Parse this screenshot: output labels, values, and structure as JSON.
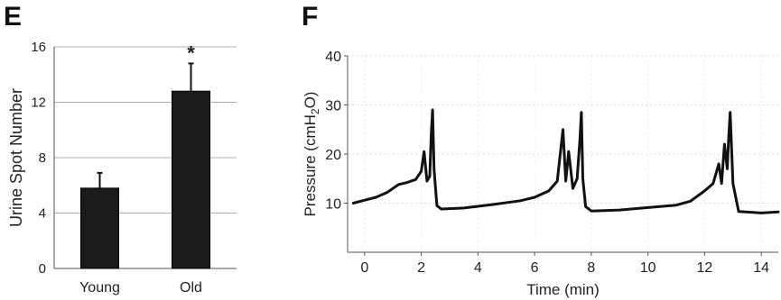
{
  "panels": {
    "left_letter": "E",
    "right_letter": "F"
  },
  "chart_data": [
    {
      "type": "bar",
      "panel": "E",
      "categories": [
        "Young",
        "Old"
      ],
      "values": [
        5.8,
        12.8
      ],
      "errors": [
        1.1,
        2.0
      ],
      "significance": [
        "",
        "*"
      ],
      "ylabel": "Urine Spot Number",
      "xlabel": "",
      "ylim": [
        0,
        16
      ],
      "yticks": [
        0,
        4,
        8,
        12,
        16
      ],
      "grid": true,
      "bar_color": "#1a1a1a"
    },
    {
      "type": "line",
      "panel": "F",
      "xlabel": "Time (min)",
      "ylabel_prefix": "Pressure (cmH",
      "ylabel_sub": "2",
      "ylabel_suffix": "O)",
      "xlim": [
        -0.6,
        14.6
      ],
      "ylim": [
        0,
        40
      ],
      "xticks": [
        0,
        2,
        4,
        6,
        8,
        10,
        12,
        14
      ],
      "yticks": [
        10,
        20,
        30,
        40
      ],
      "grid": true,
      "line_color": "#111111",
      "series": [
        {
          "x": [
            -0.4,
            0.0,
            0.4,
            0.8,
            1.2,
            1.5,
            1.8,
            2.0,
            2.1,
            2.2,
            2.3,
            2.35,
            2.4,
            2.45,
            2.55,
            2.7,
            3.5,
            4.5,
            5.5,
            6.0,
            6.5,
            6.8,
            7.0,
            7.1,
            7.2,
            7.35,
            7.5,
            7.6,
            7.65,
            7.7,
            7.8,
            8.0,
            9.0,
            10.0,
            11.0,
            11.5,
            12.0,
            12.3,
            12.5,
            12.6,
            12.7,
            12.8,
            12.85,
            12.9,
            13.0,
            13.2,
            14.0,
            14.6
          ],
          "y": [
            10.0,
            10.6,
            11.2,
            12.2,
            13.8,
            14.2,
            14.8,
            16.5,
            20.5,
            14.5,
            15.5,
            24.0,
            29.0,
            17.0,
            9.5,
            8.8,
            9.0,
            9.7,
            10.5,
            11.2,
            12.5,
            14.5,
            25.0,
            14.5,
            20.5,
            13.0,
            15.0,
            23.0,
            28.5,
            15.0,
            9.3,
            8.4,
            8.6,
            9.1,
            9.6,
            10.4,
            12.5,
            14.0,
            18.0,
            14.0,
            22.0,
            17.0,
            23.5,
            28.5,
            14.0,
            8.3,
            8.0,
            8.2
          ]
        }
      ]
    }
  ]
}
